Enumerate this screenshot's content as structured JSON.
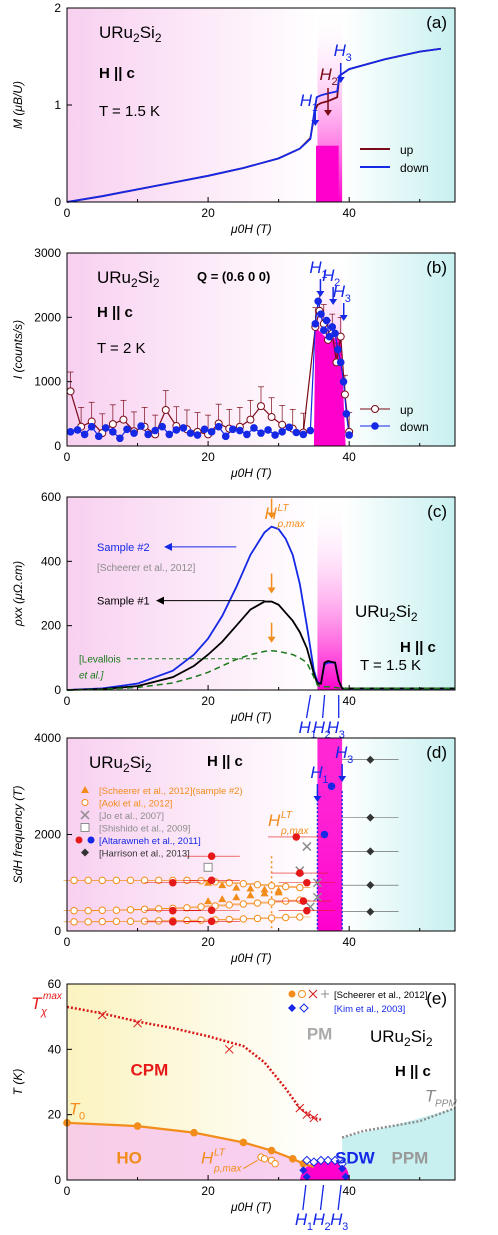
{
  "colors": {
    "magenta": "#ff00cc",
    "pink_bg": "#f8d0f0",
    "cyan_bg": "#c8f0f0",
    "yellow_bg": "#fbf3c0",
    "up": "#7a0a18",
    "down": "#1428e6",
    "black": "#000000",
    "orange": "#f28c1a",
    "red": "#e61919",
    "green": "#1a7a1a",
    "gray": "#8c8c8c",
    "blue": "#1428e6"
  },
  "chart_data": [
    {
      "id": "a",
      "type": "line",
      "panel_label": "(a)",
      "title_lines": [
        "URu2Si2",
        "H || c",
        "T = 1.5 K"
      ],
      "xlabel": "μ0H (T)",
      "ylabel": "M (μB/U)",
      "xlim": [
        0,
        55
      ],
      "ylim": [
        0,
        2
      ],
      "xticks": [
        0,
        20,
        40
      ],
      "yticks": [
        0,
        1,
        2
      ],
      "annotations": [
        "H1",
        "H2",
        "H3"
      ],
      "series": [
        {
          "name": "up",
          "x": [
            0,
            5,
            10,
            15,
            20,
            25,
            30,
            33,
            34.5,
            35.2,
            35.5,
            36,
            37,
            38.3,
            38.6,
            40,
            45,
            50,
            53
          ],
          "y": [
            0,
            0.06,
            0.13,
            0.2,
            0.27,
            0.35,
            0.45,
            0.55,
            0.66,
            0.95,
            1.0,
            1.02,
            1.04,
            1.08,
            1.3,
            1.37,
            1.47,
            1.55,
            1.58
          ]
        },
        {
          "name": "down",
          "x": [
            0,
            5,
            10,
            15,
            20,
            25,
            30,
            33,
            34.5,
            35.1,
            35.4,
            36,
            37,
            38.3,
            38.6,
            40,
            45,
            50,
            53
          ],
          "y": [
            0,
            0.06,
            0.13,
            0.2,
            0.27,
            0.35,
            0.45,
            0.55,
            0.65,
            0.95,
            1.08,
            1.1,
            1.12,
            1.14,
            1.3,
            1.37,
            1.47,
            1.55,
            1.58
          ]
        }
      ]
    },
    {
      "id": "b",
      "type": "scatter",
      "panel_label": "(b)",
      "title_lines": [
        "URu2Si2",
        "H || c",
        "T = 2 K"
      ],
      "q_label": "Q = (0.6 0 0)",
      "xlabel": "μ0H (T)",
      "ylabel": "I (counts/s)",
      "xlim": [
        0,
        55
      ],
      "ylim": [
        0,
        3000
      ],
      "xticks": [
        0,
        20,
        40
      ],
      "yticks": [
        0,
        1000,
        2000,
        3000
      ],
      "annotations": [
        "H1",
        "H2",
        "H3"
      ],
      "series": [
        {
          "name": "up",
          "x": [
            0.5,
            2,
            3.5,
            5,
            6.5,
            8,
            9.5,
            11,
            12.5,
            14,
            15.5,
            17,
            18.5,
            20,
            21.5,
            23,
            24.5,
            26,
            27.5,
            29,
            30.5,
            32,
            33.5,
            35.2,
            35.8,
            36.4,
            37,
            37.6,
            38.2,
            38.8,
            39.4,
            40
          ],
          "y": [
            850,
            300,
            380,
            200,
            340,
            410,
            230,
            300,
            180,
            560,
            310,
            260,
            220,
            180,
            350,
            270,
            300,
            410,
            620,
            450,
            330,
            270,
            210,
            1850,
            2100,
            1900,
            1650,
            1750,
            1300,
            1700,
            800,
            220
          ]
        },
        {
          "name": "down",
          "x": [
            0.5,
            1.5,
            2.5,
            3.5,
            4.5,
            5.5,
            6.5,
            7.5,
            8.5,
            9.5,
            10.5,
            11.5,
            12.5,
            13.5,
            14.5,
            15.5,
            16.5,
            17.5,
            18.5,
            19.5,
            20.5,
            21.5,
            22.5,
            23.5,
            24.5,
            25.5,
            26.5,
            27.5,
            28.5,
            29.5,
            30.5,
            31.5,
            32.5,
            33.5,
            34.5,
            35.2,
            35.6,
            36,
            36.4,
            36.8,
            37.2,
            37.6,
            38,
            38.4,
            38.8,
            39.2,
            39.6,
            40
          ],
          "y": [
            220,
            250,
            180,
            300,
            150,
            280,
            220,
            120,
            260,
            200,
            310,
            180,
            240,
            300,
            180,
            250,
            280,
            200,
            170,
            260,
            220,
            300,
            150,
            260,
            240,
            180,
            280,
            200,
            250,
            170,
            220,
            290,
            210,
            180,
            240,
            1900,
            2250,
            2050,
            1800,
            1950,
            1700,
            1850,
            1750,
            1500,
            1300,
            1000,
            500,
            170
          ]
        }
      ]
    },
    {
      "id": "c",
      "type": "line",
      "panel_label": "(c)",
      "title_lines": [
        "URu2Si2",
        "H || c",
        "T = 1.5 K"
      ],
      "xlabel": "μ0H (T)",
      "ylabel": "ρxx (μΩ.cm)",
      "xlim": [
        0,
        55
      ],
      "ylim": [
        0,
        600
      ],
      "xticks": [
        0,
        20,
        40
      ],
      "yticks": [
        0,
        200,
        400,
        600
      ],
      "marker_label": "H^LT ρ,max",
      "annotations": [
        "H1",
        "H2",
        "H3"
      ],
      "labels": [
        "Sample #2",
        "[Scheerer et al., 2012]",
        "Sample #1",
        "[Levallois et al.]"
      ],
      "series": [
        {
          "name": "Sample #2",
          "x": [
            0,
            5,
            10,
            15,
            18,
            20,
            22,
            24,
            26,
            28,
            29,
            30,
            31,
            32,
            33,
            34,
            35,
            35.5,
            36,
            36.5,
            37,
            38,
            38.5,
            39,
            40,
            45,
            50,
            55
          ],
          "y": [
            0,
            5,
            20,
            60,
            110,
            160,
            230,
            320,
            420,
            490,
            508,
            500,
            470,
            420,
            330,
            200,
            60,
            25,
            20,
            80,
            85,
            85,
            30,
            5,
            5,
            5,
            5,
            5
          ]
        },
        {
          "name": "Sample #1",
          "x": [
            0,
            5,
            10,
            15,
            18,
            20,
            22,
            24,
            26,
            28,
            29,
            30,
            31,
            32,
            33,
            34,
            35,
            35.5,
            36,
            36.5,
            37,
            38,
            38.5,
            39,
            40,
            45,
            50,
            55
          ],
          "y": [
            0,
            3,
            12,
            40,
            75,
            110,
            150,
            200,
            250,
            275,
            275,
            265,
            240,
            215,
            180,
            130,
            50,
            20,
            20,
            85,
            90,
            85,
            30,
            5,
            5,
            5,
            5,
            5
          ]
        },
        {
          "name": "[Levallois et al.]",
          "x": [
            0,
            5,
            10,
            15,
            18,
            20,
            22,
            24,
            26,
            28,
            29,
            30,
            31,
            32,
            33,
            34,
            35,
            35.5,
            36,
            37,
            38,
            39,
            40,
            45,
            50,
            55
          ],
          "y": [
            0,
            2,
            8,
            22,
            40,
            55,
            75,
            95,
            110,
            120,
            122,
            120,
            115,
            110,
            100,
            85,
            40,
            15,
            10,
            10,
            8,
            5,
            5,
            5,
            5,
            5
          ]
        }
      ]
    },
    {
      "id": "d",
      "type": "scatter",
      "panel_label": "(d)",
      "title_lines": [
        "URu2Si2",
        "H || c"
      ],
      "xlabel": "μ0H (T)",
      "ylabel": "SdH frequency (T)",
      "xlim": [
        0,
        55
      ],
      "ylim": [
        0,
        4000
      ],
      "xticks": [
        0,
        20,
        40
      ],
      "yticks": [
        0,
        2000,
        4000
      ],
      "marker_label": "H^LT ρ,max",
      "annotations": [
        "H1",
        "H3"
      ],
      "legend": [
        "[Scheerer et al., 2012](sample #2)",
        "[Aoki et al., 2012]",
        "[Jo et al., 2007]",
        "[Shishido et al., 2009]",
        "[Altarawneh et al., 2011]",
        "[Harrison et al., 2013]"
      ],
      "series": [
        {
          "name": "[Scheerer et al., 2012](sample #2)",
          "x": [
            20,
            22,
            24,
            26,
            28,
            30,
            20,
            22,
            24,
            26,
            28,
            30
          ],
          "y": [
            1000,
            950,
            900,
            880,
            860,
            840,
            620,
            660,
            700,
            740,
            780,
            800
          ]
        },
        {
          "name": "[Aoki et al., 2012]",
          "x": [
            1,
            3,
            5,
            7,
            9,
            11,
            13,
            15,
            17,
            19,
            21,
            23,
            25,
            27,
            29,
            31,
            33,
            1,
            3,
            5,
            7,
            9,
            11,
            13,
            15,
            17,
            19,
            21,
            23,
            25,
            27,
            29,
            31,
            33,
            1,
            3,
            5,
            7,
            9,
            11,
            13,
            15,
            17,
            19,
            21,
            23,
            25,
            27,
            29,
            31,
            33
          ],
          "y": [
            1050,
            1050,
            1050,
            1050,
            1050,
            1050,
            1050,
            1050,
            1050,
            1040,
            1020,
            1000,
            980,
            960,
            940,
            920,
            900,
            420,
            420,
            430,
            430,
            440,
            450,
            460,
            470,
            480,
            500,
            520,
            540,
            560,
            580,
            600,
            620,
            640,
            190,
            190,
            195,
            200,
            200,
            205,
            210,
            215,
            220,
            225,
            230,
            240,
            250,
            260,
            270,
            280,
            290
          ]
        },
        {
          "name": "[Jo et al., 2007]",
          "x": [
            34,
            35.5,
            35.5,
            34.5,
            33
          ],
          "y": [
            1750,
            1000,
            700,
            500,
            1250
          ]
        },
        {
          "name": "[Shishido et al., 2009]",
          "x": [
            20
          ],
          "y": [
            1320
          ]
        },
        {
          "name": "[Altarawneh et al., 2011]",
          "x": [
            15,
            15,
            15,
            20.5,
            20.5,
            20.5,
            20.5,
            32.5,
            33,
            33.5,
            34,
            34
          ],
          "y": [
            1000,
            420,
            190,
            1550,
            1050,
            430,
            200,
            1950,
            1200,
            620,
            420,
            1000
          ]
        },
        {
          "name": "[Altarawneh et al., 2011] blue",
          "x": [
            36.5,
            37.5
          ],
          "y": [
            2000,
            3000
          ]
        },
        {
          "name": "[Harrison et al., 2013]",
          "x": [
            43,
            43,
            43,
            43,
            43
          ],
          "y": [
            3550,
            2350,
            1650,
            950,
            400
          ]
        }
      ]
    },
    {
      "id": "e",
      "type": "scatter",
      "panel_label": "(e)",
      "title_lines": [
        "URu2Si2",
        "H || c"
      ],
      "xlabel": "μ0H (T)",
      "ylabel": "T (K)",
      "xlim": [
        0,
        55
      ],
      "ylim": [
        0,
        60
      ],
      "xticks": [
        0,
        20,
        40
      ],
      "yticks": [
        0,
        20,
        40,
        60
      ],
      "legend": [
        "[Scheerer et al., 2012]",
        "[Kim et al., 2003]"
      ],
      "phase_labels": [
        "CPM",
        "PM",
        "HO",
        "SDW",
        "PPM"
      ],
      "line_labels": [
        "Tχmax",
        "T0",
        "TPPM",
        "H^LT ρ,max"
      ],
      "annotations": [
        "H1",
        "H2",
        "H3"
      ],
      "series": [
        {
          "name": "T0",
          "x": [
            0,
            10,
            18,
            25,
            29,
            32,
            33.5,
            35
          ],
          "y": [
            17.5,
            16.5,
            14.5,
            11.5,
            9,
            6.5,
            5,
            4
          ]
        },
        {
          "name": "Tchi_max",
          "x": [
            0,
            5,
            10,
            15,
            20,
            25,
            28,
            31,
            33,
            35,
            36
          ],
          "y": [
            53,
            51,
            48.5,
            46.5,
            44,
            41,
            36,
            28,
            22,
            19,
            18.5
          ]
        },
        {
          "name": "TPPM",
          "x": [
            39,
            42,
            46,
            50,
            55
          ],
          "y": [
            13,
            15,
            16.5,
            18,
            22
          ]
        },
        {
          "name": "H_rho_max",
          "x": [
            27.5,
            28,
            29,
            29.5
          ],
          "y": [
            7,
            6.5,
            6,
            5
          ]
        }
      ]
    }
  ]
}
